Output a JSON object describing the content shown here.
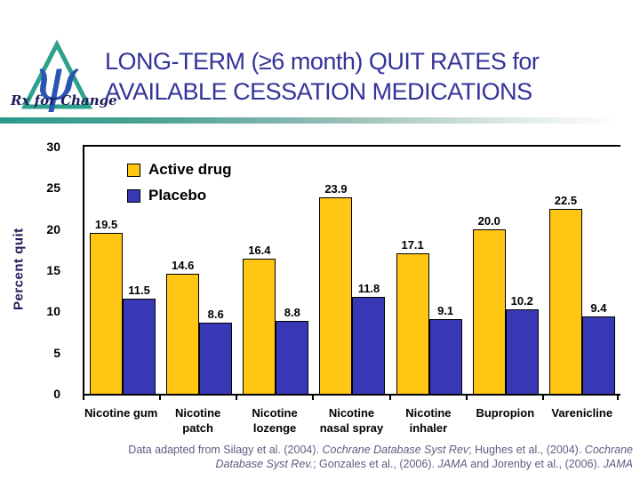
{
  "header": {
    "title_line1": "LONG-TERM (≥6 month) QUIT RATES for",
    "title_line2": "AVAILABLE CESSATION MEDICATIONS",
    "logo_text": "Rx for Change",
    "logo_psi": "ψ"
  },
  "chart_data": {
    "type": "bar",
    "title": "LONG-TERM (≥6 month) QUIT RATES for AVAILABLE CESSATION MEDICATIONS",
    "xlabel": "",
    "ylabel": "Percent quit",
    "ylim": [
      0,
      30
    ],
    "yticks": [
      0,
      5,
      10,
      15,
      20,
      25,
      30
    ],
    "grid": false,
    "legend_position": "inside-top-left",
    "categories": [
      [
        "Nicotine gum"
      ],
      [
        "Nicotine",
        "patch"
      ],
      [
        "Nicotine",
        "lozenge"
      ],
      [
        "Nicotine",
        "nasal spray"
      ],
      [
        "Nicotine",
        "inhaler"
      ],
      [
        "Bupropion"
      ],
      [
        "Varenicline"
      ]
    ],
    "series": [
      {
        "name": "Active drug",
        "color": "#ffc613",
        "values": [
          19.5,
          14.6,
          16.4,
          23.9,
          17.1,
          20.0,
          22.5
        ]
      },
      {
        "name": "Placebo",
        "color": "#3838b7",
        "values": [
          11.5,
          8.6,
          8.8,
          11.8,
          9.1,
          10.2,
          9.4
        ]
      }
    ]
  },
  "footer": {
    "lines": [
      [
        {
          "text": "Data adapted from Silagy et al. (2004). ",
          "italic": false
        },
        {
          "text": "Cochrane Database Syst Rev",
          "italic": true
        },
        {
          "text": "; Hughes et al., (2004). ",
          "italic": false
        },
        {
          "text": "Cochrane",
          "italic": true
        }
      ],
      [
        {
          "text": "Database Syst Rev.",
          "italic": true
        },
        {
          "text": "; Gonzales et al., (2006). ",
          "italic": false
        },
        {
          "text": "JAMA",
          "italic": true
        },
        {
          "text": " and Jorenby et al., (2006). ",
          "italic": false
        },
        {
          "text": "JAMA",
          "italic": true
        }
      ]
    ]
  },
  "colors": {
    "title": "#333399",
    "divider": "#2d9a8c",
    "active_drug": "#ffc613",
    "placebo": "#3838b7",
    "ylabel": "#1f1f5f",
    "footer_text": "#5d5d82",
    "logo_triangle": "#2ea18b",
    "logo_psi": "#2a55b0"
  }
}
